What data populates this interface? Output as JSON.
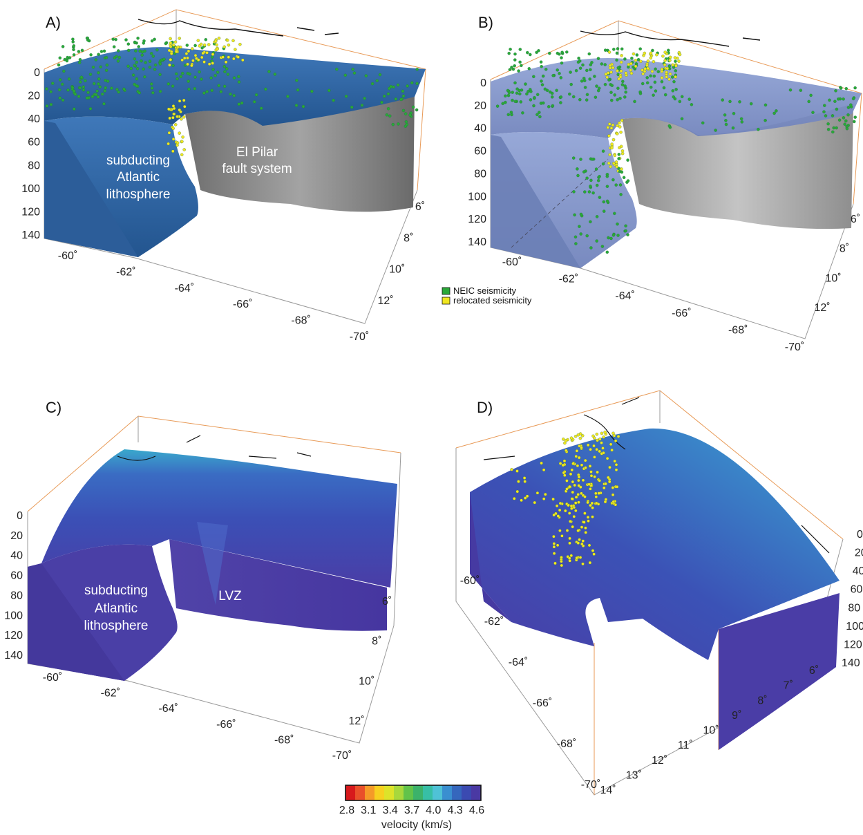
{
  "panels": [
    {
      "label": "A)",
      "depth_ticks": [
        "0",
        "20",
        "40",
        "60",
        "80",
        "100",
        "120",
        "140"
      ],
      "lon_ticks": [
        "-60˚",
        "-62˚",
        "-64˚",
        "-66˚",
        "-68˚",
        "-70˚"
      ],
      "lat_ticks": [
        "6˚",
        "8˚",
        "10˚",
        "12˚"
      ],
      "annotations": {
        "slab": [
          "subducting",
          "Atlantic",
          "lithosphere"
        ],
        "fault": [
          "El Pilar",
          "fault system"
        ]
      },
      "colors": {
        "slab": "#2f6cad",
        "surface": "#3a70ad",
        "fault": "#7d7d7d"
      }
    },
    {
      "label": "B)",
      "depth_ticks": [
        "0",
        "20",
        "40",
        "60",
        "80",
        "100",
        "120",
        "140"
      ],
      "lon_ticks": [
        "-60˚",
        "-62˚",
        "-64˚",
        "-66˚",
        "-68˚",
        "-70˚"
      ],
      "lat_ticks": [
        "6˚",
        "8˚",
        "10˚",
        "12˚"
      ],
      "colors": {
        "slab": "#7c90c7",
        "surface": "#8294c8",
        "fault": "#9a9a9a"
      }
    },
    {
      "label": "C)",
      "depth_ticks": [
        "0",
        "20",
        "40",
        "60",
        "80",
        "100",
        "120",
        "140"
      ],
      "lon_ticks": [
        "-60˚",
        "-62˚",
        "-64˚",
        "-66˚",
        "-68˚",
        "-70˚"
      ],
      "lat_ticks": [
        "6˚",
        "8˚",
        "10˚",
        "12˚"
      ],
      "annotations": {
        "slab": [
          "subducting",
          "Atlantic",
          "lithosphere"
        ],
        "lvz": "LVZ"
      },
      "colors": {
        "slab": "#4b3fa6",
        "surface": "#3b57bb",
        "edge": "#35b8cf"
      }
    },
    {
      "label": "D)",
      "depth_ticks": [
        "0",
        "20",
        "40",
        "60",
        "80",
        "100",
        "120",
        "140"
      ],
      "lon_ticks": [
        "-60˚",
        "-62˚",
        "-64˚",
        "-66˚",
        "-68˚",
        "-70˚"
      ],
      "lat_ticks": [
        "6˚",
        "7˚",
        "8˚",
        "9˚",
        "10˚",
        "11˚",
        "12˚",
        "13˚",
        "14˚"
      ],
      "colors": {
        "slab": "#4b3fa6",
        "surface": "#3b57bb",
        "edge": "#35b8cf"
      }
    }
  ],
  "legend": {
    "items": [
      {
        "label": "NEIC seismicity",
        "color": "#2aa838"
      },
      {
        "label": "relocated seismicity",
        "color": "#f0e620"
      }
    ]
  },
  "colorbar": {
    "ticks": [
      "2.8",
      "3.1",
      "3.4",
      "3.7",
      "4.0",
      "4.3",
      "4.6"
    ],
    "label": "velocity (km/s)",
    "colors": [
      "#d7191c",
      "#e9502a",
      "#f59a28",
      "#f7d020",
      "#dde32a",
      "#a8d83c",
      "#62c34a",
      "#3cb26a",
      "#37bfa5",
      "#4fc2d6",
      "#3a8fd0",
      "#3567bd",
      "#3b4ab1",
      "#4a39a3"
    ]
  }
}
